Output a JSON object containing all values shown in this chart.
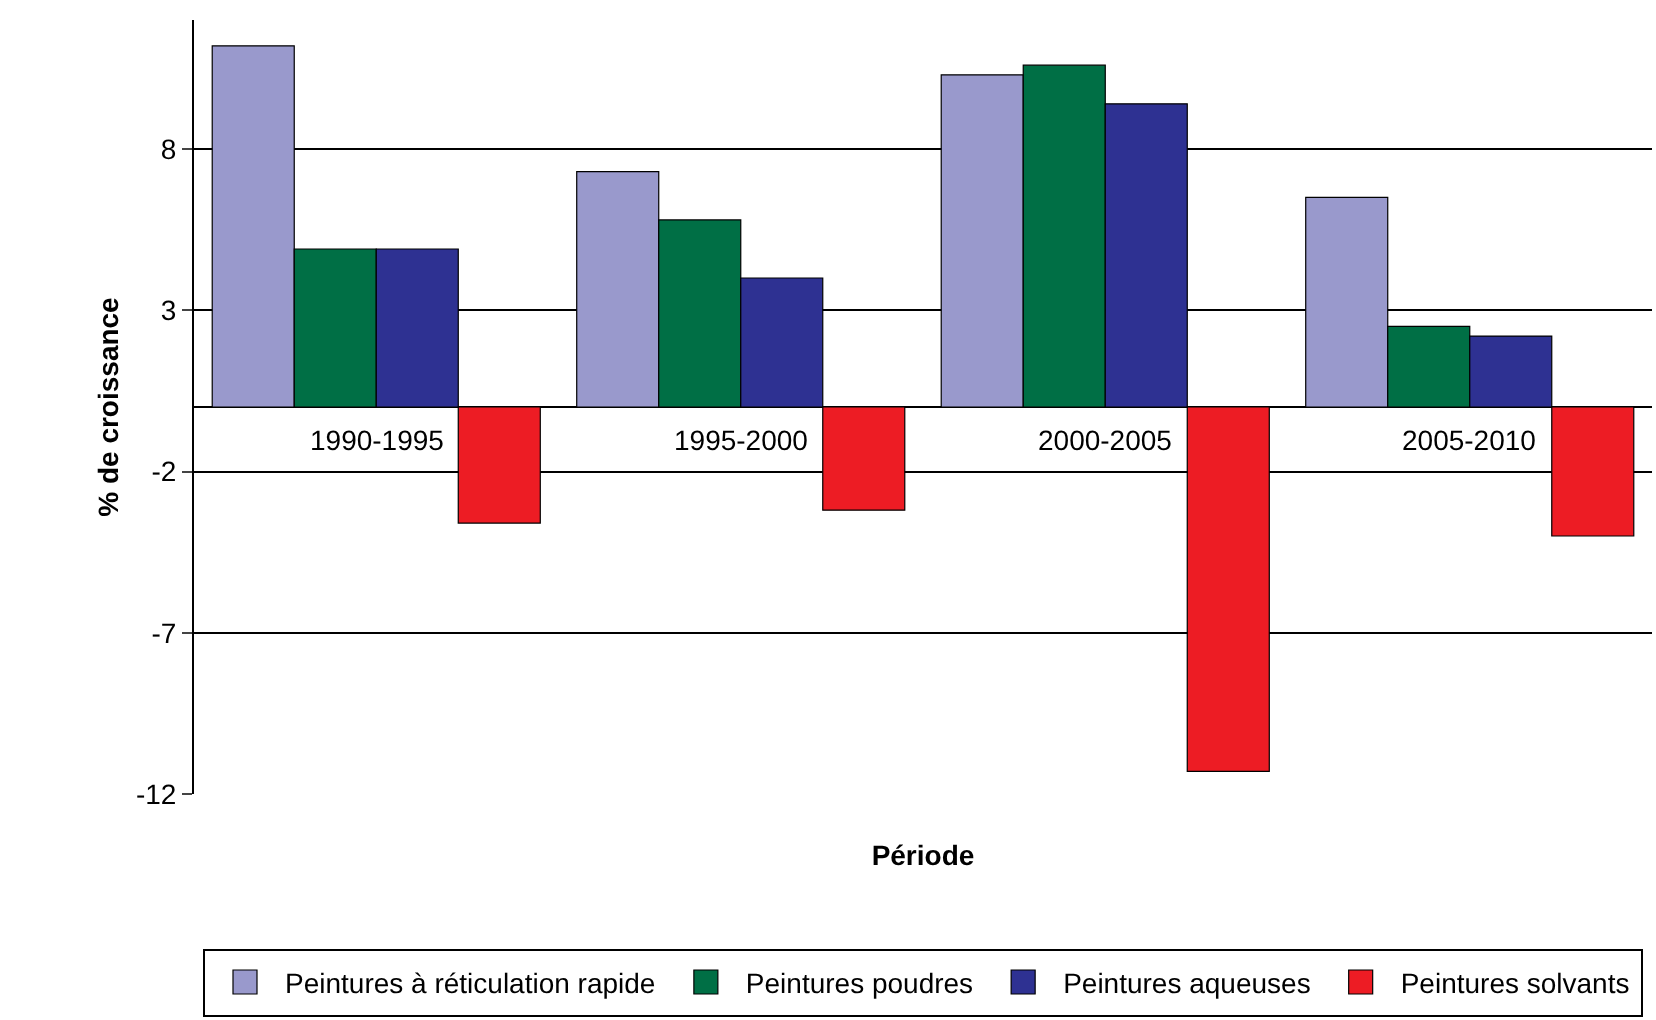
{
  "chart_data": {
    "type": "bar",
    "xlabel": "Période",
    "ylabel": "% de croissance",
    "categories": [
      "1990-1995",
      "1995-2000",
      "2000-2005",
      "2005-2010"
    ],
    "series": [
      {
        "name": "Peintures à réticulation rapide",
        "color": "#9999cc",
        "values": [
          11.2,
          7.3,
          10.3,
          6.5
        ]
      },
      {
        "name": "Peintures poudres",
        "color": "#006f45",
        "values": [
          4.9,
          5.8,
          10.6,
          2.5
        ]
      },
      {
        "name": "Peintures aqueuses",
        "color": "#2e3192",
        "values": [
          4.9,
          4.0,
          9.4,
          2.2
        ]
      },
      {
        "name": "Peintures solvants",
        "color": "#ed1c24",
        "values": [
          -3.6,
          -3.2,
          -11.3,
          -4.0
        ]
      }
    ],
    "ylim": [
      -12,
      12
    ],
    "yticks": [
      -12,
      -7,
      -2,
      3,
      8
    ],
    "grid": "y",
    "legend": "bottom"
  }
}
